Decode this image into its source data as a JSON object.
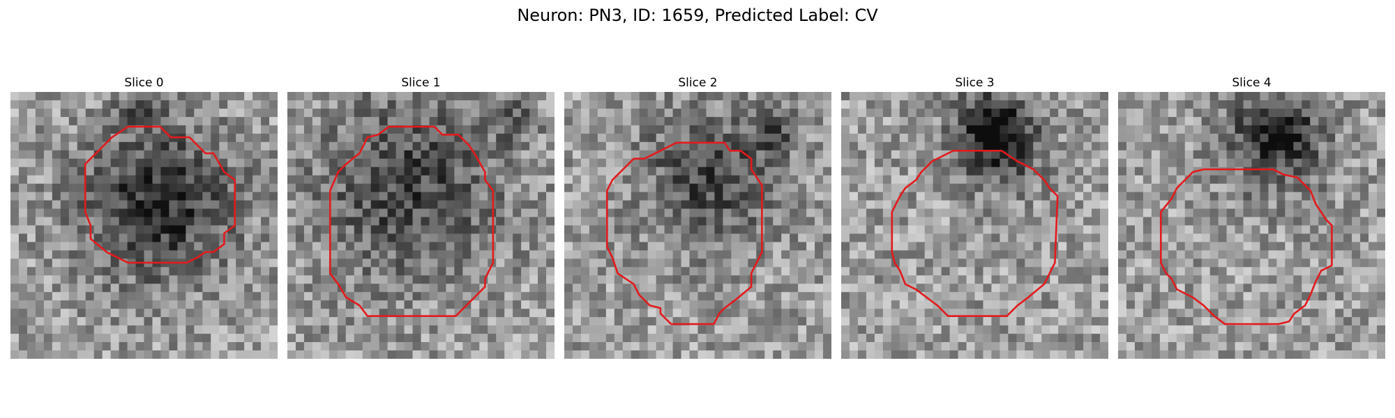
{
  "title": "Neuron: PN3, ID: 1659, Predicted Label: CV",
  "colors": {
    "contour": "#e31a1c",
    "background": "#ffffff"
  },
  "panels": [
    {
      "title": "Slice 0",
      "dark_center": [
        0.55,
        0.42
      ],
      "dark_strength": 0.45,
      "dark_radius": 0.2,
      "upper_dark": [
        0.5,
        0.05
      ],
      "contour": [
        [
          0.44,
          0.13
        ],
        [
          0.56,
          0.13
        ],
        [
          0.6,
          0.17
        ],
        [
          0.67,
          0.17
        ],
        [
          0.73,
          0.23
        ],
        [
          0.76,
          0.23
        ],
        [
          0.8,
          0.3
        ],
        [
          0.84,
          0.33
        ],
        [
          0.84,
          0.5
        ],
        [
          0.8,
          0.53
        ],
        [
          0.8,
          0.57
        ],
        [
          0.76,
          0.6
        ],
        [
          0.73,
          0.6
        ],
        [
          0.7,
          0.62
        ],
        [
          0.66,
          0.64
        ],
        [
          0.44,
          0.64
        ],
        [
          0.36,
          0.6
        ],
        [
          0.3,
          0.55
        ],
        [
          0.3,
          0.5
        ],
        [
          0.28,
          0.45
        ],
        [
          0.28,
          0.27
        ],
        [
          0.32,
          0.23
        ],
        [
          0.38,
          0.17
        ]
      ]
    },
    {
      "title": "Slice 1",
      "dark_center": [
        0.45,
        0.35
      ],
      "dark_strength": 0.35,
      "dark_radius": 0.24,
      "upper_dark": [
        0.85,
        0.1
      ],
      "contour": [
        [
          0.38,
          0.13
        ],
        [
          0.55,
          0.13
        ],
        [
          0.58,
          0.16
        ],
        [
          0.64,
          0.16
        ],
        [
          0.68,
          0.2
        ],
        [
          0.7,
          0.23
        ],
        [
          0.74,
          0.3
        ],
        [
          0.74,
          0.33
        ],
        [
          0.77,
          0.37
        ],
        [
          0.77,
          0.64
        ],
        [
          0.74,
          0.7
        ],
        [
          0.74,
          0.73
        ],
        [
          0.7,
          0.77
        ],
        [
          0.67,
          0.8
        ],
        [
          0.63,
          0.84
        ],
        [
          0.3,
          0.84
        ],
        [
          0.27,
          0.8
        ],
        [
          0.22,
          0.77
        ],
        [
          0.19,
          0.72
        ],
        [
          0.16,
          0.68
        ],
        [
          0.16,
          0.37
        ],
        [
          0.19,
          0.3
        ],
        [
          0.22,
          0.27
        ],
        [
          0.27,
          0.23
        ],
        [
          0.3,
          0.17
        ],
        [
          0.34,
          0.16
        ]
      ]
    },
    {
      "title": "Slice 2",
      "dark_center": [
        0.55,
        0.32
      ],
      "dark_strength": 0.35,
      "dark_radius": 0.18,
      "upper_dark": [
        0.78,
        0.15
      ],
      "contour": [
        [
          0.42,
          0.19
        ],
        [
          0.6,
          0.19
        ],
        [
          0.62,
          0.22
        ],
        [
          0.66,
          0.22
        ],
        [
          0.7,
          0.25
        ],
        [
          0.7,
          0.29
        ],
        [
          0.74,
          0.35
        ],
        [
          0.74,
          0.6
        ],
        [
          0.7,
          0.68
        ],
        [
          0.7,
          0.73
        ],
        [
          0.64,
          0.78
        ],
        [
          0.6,
          0.81
        ],
        [
          0.58,
          0.83
        ],
        [
          0.56,
          0.87
        ],
        [
          0.4,
          0.87
        ],
        [
          0.36,
          0.83
        ],
        [
          0.36,
          0.81
        ],
        [
          0.32,
          0.8
        ],
        [
          0.28,
          0.76
        ],
        [
          0.26,
          0.72
        ],
        [
          0.2,
          0.68
        ],
        [
          0.18,
          0.62
        ],
        [
          0.16,
          0.58
        ],
        [
          0.16,
          0.37
        ],
        [
          0.18,
          0.33
        ],
        [
          0.22,
          0.29
        ],
        [
          0.26,
          0.25
        ],
        [
          0.3,
          0.25
        ],
        [
          0.36,
          0.22
        ]
      ]
    },
    {
      "title": "Slice 3",
      "dark_center": [
        0.58,
        0.18
      ],
      "dark_strength": 0.5,
      "dark_radius": 0.12,
      "upper_dark": [
        0.55,
        0.1
      ],
      "contour": [
        [
          0.42,
          0.22
        ],
        [
          0.6,
          0.22
        ],
        [
          0.66,
          0.26
        ],
        [
          0.72,
          0.29
        ],
        [
          0.76,
          0.33
        ],
        [
          0.78,
          0.36
        ],
        [
          0.81,
          0.39
        ],
        [
          0.8,
          0.64
        ],
        [
          0.76,
          0.72
        ],
        [
          0.7,
          0.77
        ],
        [
          0.66,
          0.8
        ],
        [
          0.62,
          0.84
        ],
        [
          0.57,
          0.84
        ],
        [
          0.53,
          0.84
        ],
        [
          0.4,
          0.84
        ],
        [
          0.36,
          0.8
        ],
        [
          0.32,
          0.77
        ],
        [
          0.28,
          0.74
        ],
        [
          0.24,
          0.72
        ],
        [
          0.22,
          0.67
        ],
        [
          0.2,
          0.64
        ],
        [
          0.19,
          0.6
        ],
        [
          0.19,
          0.45
        ],
        [
          0.22,
          0.39
        ],
        [
          0.24,
          0.36
        ],
        [
          0.28,
          0.33
        ],
        [
          0.3,
          0.3
        ],
        [
          0.34,
          0.26
        ],
        [
          0.38,
          0.24
        ]
      ]
    },
    {
      "title": "Slice 4",
      "dark_center": [
        0.58,
        0.18
      ],
      "dark_strength": 0.4,
      "dark_radius": 0.14,
      "upper_dark": [
        0.62,
        0.15
      ],
      "contour": [
        [
          0.32,
          0.29
        ],
        [
          0.58,
          0.29
        ],
        [
          0.62,
          0.31
        ],
        [
          0.67,
          0.32
        ],
        [
          0.72,
          0.37
        ],
        [
          0.74,
          0.42
        ],
        [
          0.78,
          0.48
        ],
        [
          0.8,
          0.5
        ],
        [
          0.8,
          0.65
        ],
        [
          0.76,
          0.67
        ],
        [
          0.74,
          0.71
        ],
        [
          0.72,
          0.76
        ],
        [
          0.7,
          0.8
        ],
        [
          0.66,
          0.83
        ],
        [
          0.64,
          0.86
        ],
        [
          0.6,
          0.87
        ],
        [
          0.4,
          0.87
        ],
        [
          0.36,
          0.84
        ],
        [
          0.32,
          0.8
        ],
        [
          0.28,
          0.77
        ],
        [
          0.22,
          0.74
        ],
        [
          0.2,
          0.7
        ],
        [
          0.18,
          0.68
        ],
        [
          0.16,
          0.64
        ],
        [
          0.16,
          0.45
        ],
        [
          0.2,
          0.4
        ],
        [
          0.22,
          0.36
        ],
        [
          0.26,
          0.32
        ],
        [
          0.28,
          0.3
        ]
      ]
    }
  ]
}
